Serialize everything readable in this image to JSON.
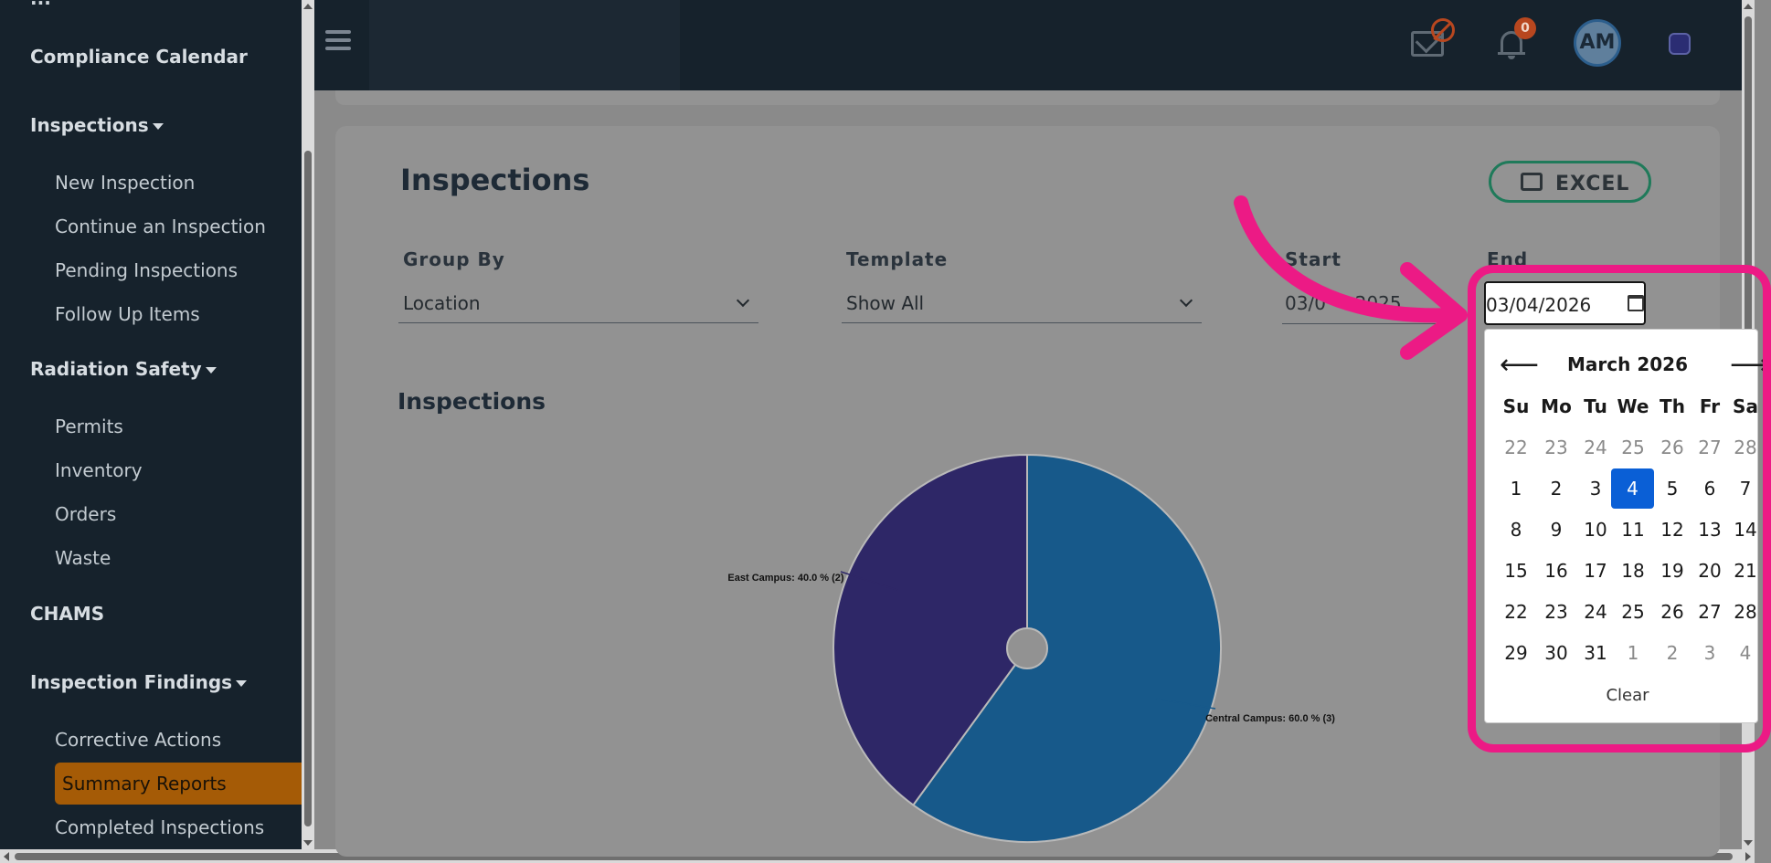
{
  "sidebar": {
    "top_fragment": "...",
    "sections": [
      {
        "label": "Compliance Calendar",
        "has_caret": false
      },
      {
        "label": "Inspections",
        "has_caret": true,
        "items": [
          "New Inspection",
          "Continue an Inspection",
          "Pending Inspections",
          "Follow Up Items"
        ]
      },
      {
        "label": "Radiation Safety",
        "has_caret": true,
        "items": [
          "Permits",
          "Inventory",
          "Orders",
          "Waste"
        ]
      },
      {
        "label": "CHAMS",
        "has_caret": false
      },
      {
        "label": "Inspection Findings",
        "has_caret": true,
        "items": [
          "Corrective Actions",
          "Summary Reports",
          "Completed Inspections"
        ]
      }
    ],
    "active_item": "Summary Reports"
  },
  "header": {
    "mail_icon": "mail-blocked-icon",
    "notification_count": "0",
    "avatar_initials": "AM"
  },
  "main": {
    "title": "Inspections",
    "excel_label": "EXCEL",
    "filters": {
      "group_by_label": "Group By",
      "group_by_value": "Location",
      "template_label": "Template",
      "template_value": "Show All",
      "start_label": "Start",
      "start_value": "03/0     2025",
      "end_label": "End",
      "end_value": "03/04/2026"
    },
    "chart_heading": "Inspections"
  },
  "chart_data": {
    "type": "pie",
    "slices": [
      {
        "label": "Central Campus",
        "value": 3,
        "percent": 60.0,
        "color": "#17598a",
        "text": "Central Campus: 60.0 % (3)"
      },
      {
        "label": "East Campus",
        "value": 2,
        "percent": 40.0,
        "color": "#2e2767",
        "text": "East Campus: 40.0 % (2)"
      }
    ],
    "legend": "none"
  },
  "datepicker": {
    "month_label": "March 2026",
    "prev_symbol": "⟵",
    "next_symbol": "⟶",
    "weekdays": [
      "Su",
      "Mo",
      "Tu",
      "We",
      "Th",
      "Fr",
      "Sa"
    ],
    "weeks": [
      [
        {
          "d": "22",
          "m": true
        },
        {
          "d": "23",
          "m": true
        },
        {
          "d": "24",
          "m": true
        },
        {
          "d": "25",
          "m": true
        },
        {
          "d": "26",
          "m": true
        },
        {
          "d": "27",
          "m": true
        },
        {
          "d": "28",
          "m": true
        }
      ],
      [
        {
          "d": "1"
        },
        {
          "d": "2"
        },
        {
          "d": "3"
        },
        {
          "d": "4",
          "sel": true
        },
        {
          "d": "5"
        },
        {
          "d": "6"
        },
        {
          "d": "7"
        }
      ],
      [
        {
          "d": "8"
        },
        {
          "d": "9"
        },
        {
          "d": "10"
        },
        {
          "d": "11"
        },
        {
          "d": "12"
        },
        {
          "d": "13"
        },
        {
          "d": "14"
        }
      ],
      [
        {
          "d": "15"
        },
        {
          "d": "16"
        },
        {
          "d": "17"
        },
        {
          "d": "18"
        },
        {
          "d": "19"
        },
        {
          "d": "20"
        },
        {
          "d": "21"
        }
      ],
      [
        {
          "d": "22"
        },
        {
          "d": "23"
        },
        {
          "d": "24"
        },
        {
          "d": "25"
        },
        {
          "d": "26"
        },
        {
          "d": "27"
        },
        {
          "d": "28"
        }
      ],
      [
        {
          "d": "29"
        },
        {
          "d": "30"
        },
        {
          "d": "31"
        },
        {
          "d": "1",
          "m": true
        },
        {
          "d": "2",
          "m": true
        },
        {
          "d": "3",
          "m": true
        },
        {
          "d": "4",
          "m": true
        }
      ]
    ],
    "clear_label": "Clear"
  },
  "colors": {
    "sidebar_bg": "#16222c",
    "active_item_bg": "#a55b06",
    "highlight": "#ec1a85",
    "selected_day": "#0a5fd6"
  }
}
